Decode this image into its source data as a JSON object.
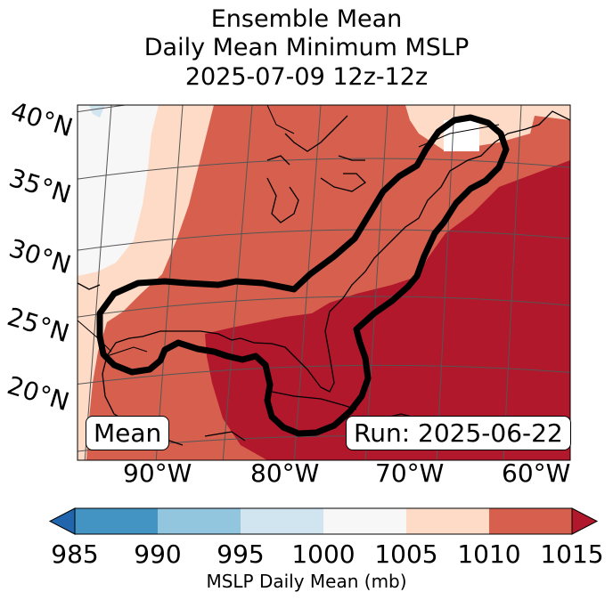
{
  "title": {
    "line1": "Ensemble Mean",
    "line2": "Daily Mean Minimum MSLP",
    "line3": "2025-07-09 12z-12z"
  },
  "map": {
    "lat_labels": [
      "40°N",
      "35°N",
      "30°N",
      "25°N",
      "20°N"
    ],
    "lon_labels": [
      "90°W",
      "80°W",
      "70°W",
      "60°W"
    ],
    "mean_label": "Mean",
    "run_label": "Run: 2025-06-22",
    "fill_colors": {
      "1000-1005": "#f7f7f7",
      "1005-1010": "#fddbc7",
      "1010-1015": "#d6604d",
      "over1015": "#b2182b",
      "995-1000": "#d1e5f0"
    }
  },
  "colorbar": {
    "ticks": [
      "985",
      "990",
      "995",
      "1000",
      "1005",
      "1010",
      "1015"
    ],
    "label": "MSLP Daily Mean (mb)",
    "colors": [
      "#2166ac",
      "#4393c3",
      "#92c5de",
      "#d1e5f0",
      "#f7f7f7",
      "#fddbc7",
      "#d6604d",
      "#b2182b"
    ]
  }
}
